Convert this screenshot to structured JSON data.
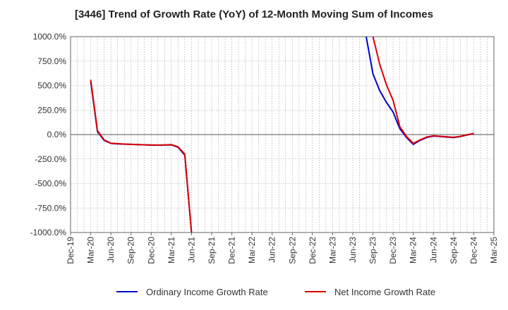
{
  "chart_data": {
    "type": "line",
    "title": "[3446]  Trend of Growth Rate (YoY) of 12-Month Moving Sum of Incomes",
    "xlabel": "",
    "ylabel": "",
    "ylim": [
      -1000,
      1000
    ],
    "y_ticks": [
      1000,
      750,
      500,
      250,
      0,
      -250,
      -500,
      -750,
      -1000
    ],
    "y_tick_labels": [
      "1000.0%",
      "750.0%",
      "500.0%",
      "250.0%",
      "0.0%",
      "-250.0%",
      "-500.0%",
      "-750.0%",
      "-1000.0%"
    ],
    "x_tick_labels": [
      "Dec-19",
      "Mar-20",
      "Jun-20",
      "Sep-20",
      "Dec-20",
      "Mar-21",
      "Jun-21",
      "Sep-21",
      "Dec-21",
      "Mar-22",
      "Jun-22",
      "Sep-22",
      "Dec-22",
      "Mar-23",
      "Jun-23",
      "Sep-23",
      "Dec-23",
      "Mar-24",
      "Jun-24",
      "Sep-24",
      "Dec-24",
      "Mar-25"
    ],
    "grid": true,
    "legend_position": "bottom",
    "series": [
      {
        "name": "Ordinary Income Growth Rate",
        "color": "#0000cc",
        "points": [
          [
            "Mar-20",
            540
          ],
          [
            "Apr-20",
            30
          ],
          [
            "May-20",
            -60
          ],
          [
            "Jun-20",
            -90
          ],
          [
            "Jul-20",
            -95
          ],
          [
            "Aug-20",
            -98
          ],
          [
            "Sep-20",
            -100
          ],
          [
            "Oct-20",
            -103
          ],
          [
            "Nov-20",
            -105
          ],
          [
            "Dec-20",
            -108
          ],
          [
            "Jan-21",
            -108
          ],
          [
            "Feb-21",
            -107
          ],
          [
            "Mar-21",
            -105
          ],
          [
            "Apr-21",
            -130
          ],
          [
            "May-21",
            -210
          ],
          [
            "Jun-21",
            -1000
          ],
          [
            "Aug-23",
            1000
          ],
          [
            "Sep-23",
            620
          ],
          [
            "Oct-23",
            450
          ],
          [
            "Nov-23",
            330
          ],
          [
            "Dec-23",
            230
          ],
          [
            "Jan-24",
            60
          ],
          [
            "Feb-24",
            -30
          ],
          [
            "Mar-24",
            -100
          ],
          [
            "Apr-24",
            -60
          ],
          [
            "May-24",
            -30
          ],
          [
            "Jun-24",
            -15
          ],
          [
            "Jul-24",
            -20
          ],
          [
            "Aug-24",
            -25
          ],
          [
            "Sep-24",
            -30
          ],
          [
            "Oct-24",
            -20
          ],
          [
            "Nov-24",
            -5
          ],
          [
            "Dec-24",
            10
          ]
        ]
      },
      {
        "name": "Net Income Growth Rate",
        "color": "#dd0000",
        "points": [
          [
            "Mar-20",
            560
          ],
          [
            "Apr-20",
            40
          ],
          [
            "May-20",
            -55
          ],
          [
            "Jun-20",
            -88
          ],
          [
            "Jul-20",
            -93
          ],
          [
            "Aug-20",
            -97
          ],
          [
            "Sep-20",
            -100
          ],
          [
            "Oct-20",
            -102
          ],
          [
            "Nov-20",
            -104
          ],
          [
            "Dec-20",
            -106
          ],
          [
            "Jan-21",
            -107
          ],
          [
            "Feb-21",
            -106
          ],
          [
            "Mar-21",
            -103
          ],
          [
            "Apr-21",
            -125
          ],
          [
            "May-21",
            -200
          ],
          [
            "Jun-21",
            -1000
          ],
          [
            "Sep-23",
            1000
          ],
          [
            "Oct-23",
            720
          ],
          [
            "Nov-23",
            510
          ],
          [
            "Dec-23",
            350
          ],
          [
            "Jan-24",
            80
          ],
          [
            "Feb-24",
            -20
          ],
          [
            "Mar-24",
            -90
          ],
          [
            "Apr-24",
            -55
          ],
          [
            "May-24",
            -25
          ],
          [
            "Jun-24",
            -12
          ],
          [
            "Jul-24",
            -18
          ],
          [
            "Aug-24",
            -22
          ],
          [
            "Sep-24",
            -28
          ],
          [
            "Oct-24",
            -18
          ],
          [
            "Nov-24",
            -3
          ],
          [
            "Dec-24",
            12
          ]
        ]
      }
    ]
  }
}
